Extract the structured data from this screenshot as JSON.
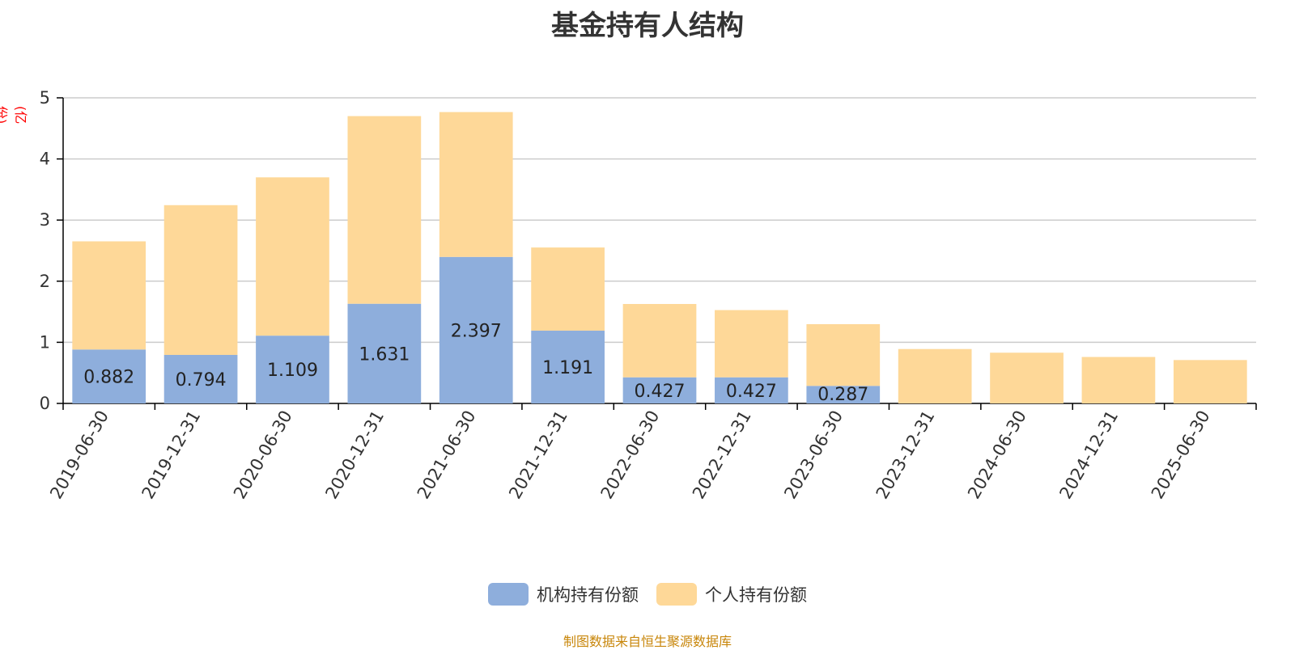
{
  "title": "基金持有人结构",
  "unit_label": "(亿份)",
  "source_text": "制图数据来自恒生聚源数据库",
  "colors": {
    "institutional": "#8eaedc",
    "individual": "#fed898",
    "grid": "#cccccc",
    "axis": "#000000",
    "tick_text": "#333333",
    "unit": "#ff0000",
    "source": "#c8860a"
  },
  "legend": [
    {
      "label": "机构持有份额",
      "color": "#8eaedc"
    },
    {
      "label": "个人持有份额",
      "color": "#fed898"
    }
  ],
  "chart_data": {
    "type": "bar",
    "stacked": true,
    "categories": [
      "2019-06-30",
      "2019-12-31",
      "2020-06-30",
      "2020-12-31",
      "2021-06-30",
      "2021-12-31",
      "2022-06-30",
      "2022-12-31",
      "2023-06-30",
      "2023-12-31",
      "2024-06-30",
      "2024-12-31",
      "2025-06-30"
    ],
    "series": [
      {
        "name": "机构持有份额",
        "values": [
          0.882,
          0.794,
          1.109,
          1.631,
          2.397,
          1.191,
          0.427,
          0.427,
          0.287,
          0,
          0,
          0,
          0
        ],
        "data_labels": [
          "0.882",
          "0.794",
          "1.109",
          "1.631",
          "2.397",
          "1.191",
          "0.427",
          "0.427",
          "0.287",
          "",
          "",
          "",
          ""
        ]
      },
      {
        "name": "个人持有份额",
        "values": [
          1.77,
          2.45,
          2.59,
          3.07,
          2.37,
          1.36,
          1.2,
          1.1,
          1.01,
          0.89,
          0.83,
          0.76,
          0.71
        ]
      }
    ],
    "ylim": [
      0,
      5
    ],
    "yticks": [
      0,
      1,
      2,
      3,
      4,
      5
    ],
    "grid": true,
    "legend_position": "bottom"
  }
}
